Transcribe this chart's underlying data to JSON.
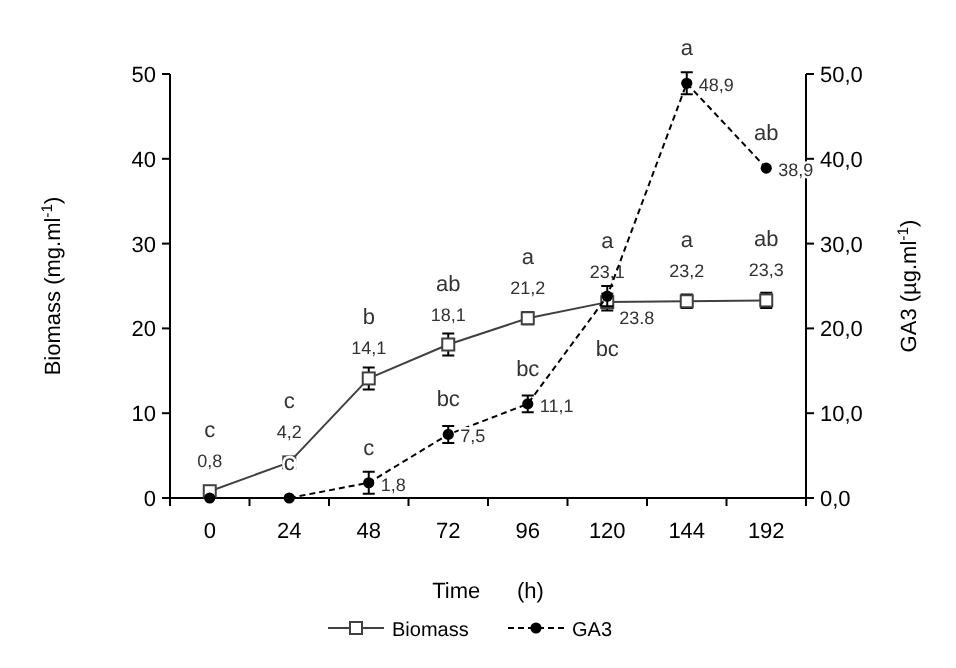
{
  "chart_data": {
    "type": "line",
    "xlabel": "Time      (h)",
    "ylabel": "Biomass   (mg.ml$^{-1}$)",
    "y2label": "GA3 (µg.ml$^{-1}$)",
    "categories": [
      "0",
      "24",
      "48",
      "72",
      "96",
      "120",
      "144",
      "192"
    ],
    "ylim": [
      0,
      50
    ],
    "yticks": [
      0,
      10,
      20,
      30,
      40,
      50
    ],
    "y2lim": [
      0,
      50
    ],
    "y2ticks": [
      {
        "value": 0,
        "label": "0,0"
      },
      {
        "value": 10,
        "label": "10,0"
      },
      {
        "value": 20,
        "label": "20,0"
      },
      {
        "value": 30,
        "label": "30,0"
      },
      {
        "value": 40,
        "label": "40,0"
      },
      {
        "value": 50,
        "label": "50,0"
      }
    ],
    "series": [
      {
        "name": "Biomass",
        "color": "#404040",
        "marker": "square",
        "line_style": "solid",
        "values": [
          0.8,
          4.2,
          14.1,
          18.1,
          21.2,
          23.1,
          23.2,
          23.3
        ],
        "errors": [
          null,
          0.4,
          1.3,
          1.3,
          0.7,
          1.0,
          0.8,
          0.9
        ],
        "value_labels": [
          "0,8",
          "4,2",
          "14,1",
          "18,1",
          "21,2",
          "23,1",
          "23,2",
          "23,3"
        ]
      },
      {
        "name": "GA3",
        "color": "#000000",
        "marker": "circle",
        "line_style": "dashed",
        "axis": "y2",
        "values": [
          0,
          0,
          1.8,
          7.5,
          11.1,
          23.8,
          48.9,
          38.9
        ],
        "errors": [
          null,
          null,
          1.3,
          1.0,
          1.0,
          1.2,
          1.3,
          null
        ],
        "value_labels": [
          null,
          null,
          "1,8",
          "7,5",
          "11,1",
          "23.8",
          "48,9",
          "38,9"
        ]
      }
    ],
    "annotations": [
      {
        "text": "c",
        "x": "0",
        "y": 0.8
      },
      {
        "text": "c",
        "x": "24",
        "y": 4.2
      },
      {
        "text": "b",
        "x": "48",
        "y": 14.1
      },
      {
        "text": "ab",
        "x": "72",
        "y": 18.1
      },
      {
        "text": "a",
        "x": "96",
        "y": 21.2
      },
      {
        "text": "a",
        "x": "120",
        "y": 23.1
      },
      {
        "text": "a",
        "x": "144",
        "y": 23.2
      },
      {
        "text": "ab",
        "x": "192",
        "y": 23.3
      },
      {
        "text": "c",
        "x": "24",
        "y": 0
      },
      {
        "text": "c",
        "x": "48",
        "y": 1.8
      },
      {
        "text": "bc",
        "x": "72",
        "y": 7.5
      },
      {
        "text": "bc",
        "x": "96",
        "y": 11.1
      },
      {
        "text": "bc",
        "x": "120",
        "y": 23.8
      },
      {
        "text": "a",
        "x": "144",
        "y": 48.9
      },
      {
        "text": "ab",
        "x": "192",
        "y": 38.9
      }
    ],
    "legend": "bottom",
    "grid": false
  }
}
